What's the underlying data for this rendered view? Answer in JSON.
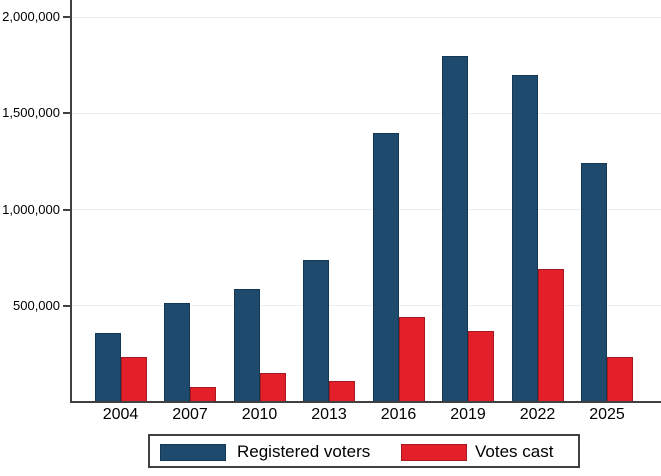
{
  "chart_data": {
    "type": "bar",
    "title": "",
    "xlabel": "",
    "ylabel": "",
    "categories": [
      "2004",
      "2007",
      "2010",
      "2013",
      "2016",
      "2019",
      "2022",
      "2025"
    ],
    "series": [
      {
        "name": "Registered voters",
        "color": "#1e4a6d",
        "values": [
          360000,
          515000,
          590000,
          740000,
          1400000,
          1800000,
          1700000,
          1240000
        ]
      },
      {
        "name": "Votes cast",
        "color": "#e3202a",
        "values": [
          235000,
          80000,
          150000,
          110000,
          440000,
          370000,
          690000,
          235000
        ]
      }
    ],
    "yticks": [
      500000,
      1000000,
      1500000,
      2000000
    ],
    "ytick_labels": [
      "500,000",
      "1,000,000",
      "1,500,000",
      "2,000,000"
    ],
    "ylim": [
      0,
      2090000
    ],
    "grid": true,
    "legend_position": "bottom"
  },
  "colors": {
    "axis": "#404040",
    "gridline": "#e7eef5",
    "text": "#000000",
    "background": "#ffffff"
  }
}
